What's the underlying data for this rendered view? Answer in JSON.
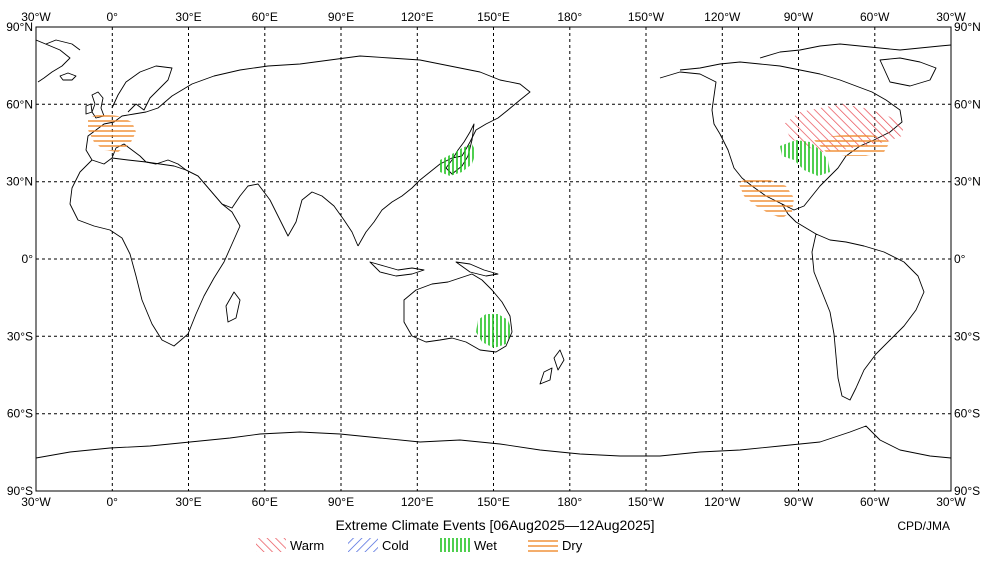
{
  "map": {
    "title": "Extreme Climate Events [06Aug2025—12Aug2025]",
    "credit": "CPD/JMA",
    "lon_labels": [
      "30°W",
      "0°",
      "30°E",
      "60°E",
      "90°E",
      "120°E",
      "150°E",
      "180°",
      "150°W",
      "120°W",
      "90°W",
      "60°W",
      "30°W"
    ],
    "lat_labels": [
      "90°N",
      "60°N",
      "30°N",
      "0°",
      "30°S",
      "60°S",
      "90°S"
    ],
    "legend": [
      {
        "label": "Warm",
        "color": "#e8474f"
      },
      {
        "label": "Cold",
        "color": "#3b5bdb"
      },
      {
        "label": "Wet",
        "color": "#22c322"
      },
      {
        "label": "Dry",
        "color": "#f08a2c"
      }
    ]
  }
}
